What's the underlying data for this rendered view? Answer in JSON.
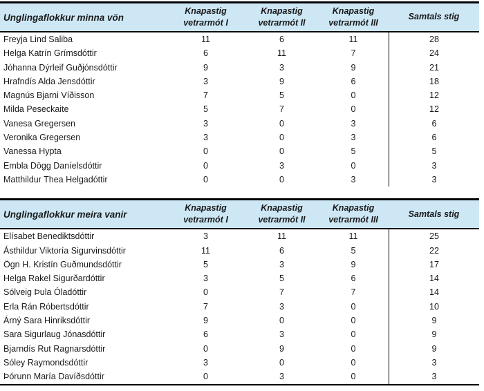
{
  "colors": {
    "header_bg": "#cde7f5",
    "border": "#000000",
    "text": "#1a1a1a"
  },
  "columns": [
    {
      "lines": [
        "Knapastig",
        "vetrarmót I"
      ]
    },
    {
      "lines": [
        "Knapastig",
        "vetrarmót II"
      ]
    },
    {
      "lines": [
        "Knapastig",
        "vetrarmót III"
      ]
    },
    {
      "lines": [
        "Samtals stig"
      ]
    }
  ],
  "tables": [
    {
      "title": "Unglingaflokkur minna vön",
      "rows": [
        {
          "name": "Freyja Lind Saliba",
          "v1": 11,
          "v2": 6,
          "v3": 11,
          "total": 28
        },
        {
          "name": "Helga Katrín Grímsdóttir",
          "v1": 6,
          "v2": 11,
          "v3": 7,
          "total": 24
        },
        {
          "name": "Jóhanna Dýrleif Guðjónsdóttir",
          "v1": 9,
          "v2": 3,
          "v3": 9,
          "total": 21
        },
        {
          "name": "Hrafndís Alda Jensdóttir",
          "v1": 3,
          "v2": 9,
          "v3": 6,
          "total": 18
        },
        {
          "name": "Magnús Bjarni Víðisson",
          "v1": 7,
          "v2": 5,
          "v3": 0,
          "total": 12
        },
        {
          "name": "Milda Peseckaite",
          "v1": 5,
          "v2": 7,
          "v3": 0,
          "total": 12
        },
        {
          "name": "Vanesa Gregersen",
          "v1": 3,
          "v2": 0,
          "v3": 3,
          "total": 6
        },
        {
          "name": "Veronika Gregersen",
          "v1": 3,
          "v2": 0,
          "v3": 3,
          "total": 6
        },
        {
          "name": "Vanessa Hypta",
          "v1": 0,
          "v2": 0,
          "v3": 5,
          "total": 5
        },
        {
          "name": "Embla Dögg Daníelsdóttir",
          "v1": 0,
          "v2": 3,
          "v3": 0,
          "total": 3
        },
        {
          "name": "Matthildur Thea Helgadóttir",
          "v1": 0,
          "v2": 0,
          "v3": 3,
          "total": 3
        }
      ]
    },
    {
      "title": "Unglingaflokkur meira vanir",
      "rows": [
        {
          "name": "Elísabet Benediktsdóttir",
          "v1": 3,
          "v2": 11,
          "v3": 11,
          "total": 25
        },
        {
          "name": "Ásthildur Viktoría Sigurvinsdóttir",
          "v1": 11,
          "v2": 6,
          "v3": 5,
          "total": 22
        },
        {
          "name": "Ögn H. Kristín Guðmundsdóttir",
          "v1": 5,
          "v2": 3,
          "v3": 9,
          "total": 17
        },
        {
          "name": "Helga Rakel Sigurðardóttir",
          "v1": 3,
          "v2": 5,
          "v3": 6,
          "total": 14
        },
        {
          "name": "Sólveig Þula Óladóttir",
          "v1": 0,
          "v2": 7,
          "v3": 7,
          "total": 14
        },
        {
          "name": "Erla Rán Róbertsdóttir",
          "v1": 7,
          "v2": 3,
          "v3": 0,
          "total": 10
        },
        {
          "name": "Árný Sara Hinriksdóttir",
          "v1": 9,
          "v2": 0,
          "v3": 0,
          "total": 9
        },
        {
          "name": "Sara Sigurlaug Jónasdóttir",
          "v1": 6,
          "v2": 3,
          "v3": 0,
          "total": 9
        },
        {
          "name": "Bjarndís Rut Ragnarsdóttir",
          "v1": 0,
          "v2": 9,
          "v3": 0,
          "total": 9
        },
        {
          "name": "Sóley Raymondsdóttir",
          "v1": 3,
          "v2": 0,
          "v3": 0,
          "total": 3
        },
        {
          "name": "Þórunn María Davíðsdóttir",
          "v1": 0,
          "v2": 3,
          "v3": 0,
          "total": 3
        }
      ]
    }
  ]
}
